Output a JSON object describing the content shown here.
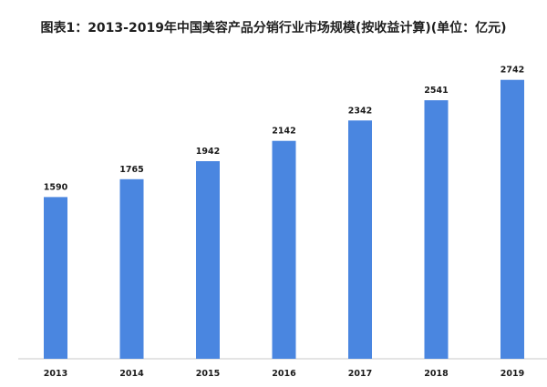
{
  "title": "图表1：2013-2019年中国美容产品分销行业市场规模(按收益计算)(单位：亿元)",
  "chart_data": {
    "type": "bar",
    "title": "图表1：2013-2019年中国美容产品分销行业市场规模(按收益计算)(单位：亿元)",
    "categories": [
      "2013",
      "2014",
      "2015",
      "2016",
      "2017",
      "2018",
      "2019"
    ],
    "values": [
      1590,
      1765,
      1942,
      2142,
      2342,
      2541,
      2742
    ],
    "xlabel": "",
    "ylabel": "",
    "ylim": [
      0,
      2900
    ],
    "grid": false,
    "legend": "none",
    "bar_color": "#4a86e0"
  }
}
